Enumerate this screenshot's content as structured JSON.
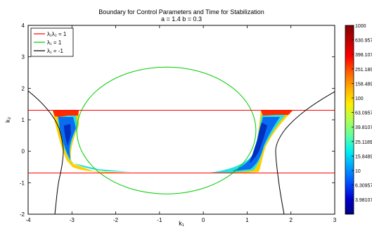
{
  "chart_data": {
    "type": "heatmap",
    "title": "Boundary for Control Parameters and Time for Stabilization",
    "subtitle": "a = 1.4  b = 0.3",
    "xlabel": "k₁",
    "ylabel": "k₂",
    "xlim": [
      -4,
      3
    ],
    "ylim": [
      -2,
      4
    ],
    "x_ticks": [
      -4,
      -3,
      -2,
      -1,
      0,
      1,
      2,
      3
    ],
    "y_ticks": [
      -2,
      -1,
      0,
      1,
      2,
      3,
      4
    ],
    "grid": false,
    "legend_position": "top-left",
    "legend": [
      {
        "label": "λ₁λ₂ = 1",
        "color": "#ff0000"
      },
      {
        "label": "λ₁ = 1",
        "color": "#00cc00"
      },
      {
        "label": "λ₁ = -1",
        "color": "#000000"
      }
    ],
    "boundaries": {
      "lambda1_lambda2_eq_1": {
        "k2": [
          1.3,
          -0.7
        ],
        "color": "#ff0000"
      },
      "lambda1_eq_1": {
        "shape": "ellipse",
        "center": [
          -0.64,
          1.32
        ],
        "semi_axes": [
          2.04,
          2.02
        ],
        "color": "#00cc00"
      },
      "lambda1_eq_minus_1": {
        "color": "#000000",
        "left_branch": [
          [
            -4.0,
            1.9
          ],
          [
            -3.3,
            1.0
          ],
          [
            -3.05,
            0.4
          ],
          [
            -2.98,
            0.0
          ],
          [
            -3.02,
            -0.4
          ],
          [
            -3.15,
            -1.0
          ],
          [
            -3.5,
            -2.0
          ]
        ],
        "right_branch": [
          [
            3.0,
            1.9
          ],
          [
            2.2,
            1.0
          ],
          [
            1.85,
            0.4
          ],
          [
            1.72,
            0.0
          ],
          [
            1.75,
            -0.4
          ],
          [
            1.85,
            -1.0
          ],
          [
            2.0,
            -2.0
          ]
        ]
      }
    },
    "colorbar": {
      "scale": "log",
      "range": [
        2.5,
        1000
      ],
      "ticks": [
        "1000",
        "630.957",
        "398.107",
        "251.189",
        "158.489",
        "100",
        "63.0957",
        "39.8107",
        "25.1189",
        "15.8489",
        "10",
        "6.30957",
        "3.98107"
      ],
      "colors": [
        "#800000",
        "#c00000",
        "#ff0000",
        "#ff6000",
        "#ffb000",
        "#ffee00",
        "#b0ff50",
        "#60ffa0",
        "#00f0f0",
        "#00a0ff",
        "#0050ff",
        "#0000d0",
        "#000080"
      ]
    },
    "regions": [
      {
        "name": "left-lobe",
        "k1_range": [
          -3.1,
          -1.6
        ],
        "k2_range": [
          -0.7,
          1.3
        ]
      },
      {
        "name": "right-lobe",
        "k1_range": [
          0.4,
          1.9
        ],
        "k2_range": [
          -0.7,
          1.3
        ]
      }
    ]
  }
}
